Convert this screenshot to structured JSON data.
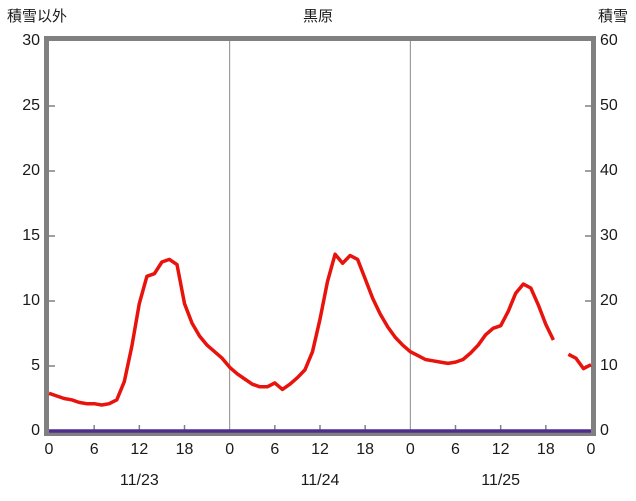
{
  "header": {
    "left_axis_title": "積雪以外",
    "chart_title": "黒原",
    "right_axis_title": "積雪"
  },
  "colors": {
    "frame": "#808080",
    "grid": "#8a8a8a",
    "tick": "#808080",
    "text": "#1a1a1a",
    "series_red": "#e8130c",
    "series_purple": "#4f2d90"
  },
  "chart_data": {
    "type": "line",
    "title": "黒原",
    "x_unit": "hour",
    "x_range": [
      0,
      72
    ],
    "x_tick_hours": [
      0,
      6,
      12,
      18,
      24,
      30,
      36,
      42,
      48,
      54,
      60,
      66,
      72
    ],
    "x_tick_labels": [
      "0",
      "6",
      "12",
      "18",
      "0",
      "6",
      "12",
      "18",
      "0",
      "6",
      "12",
      "18",
      "0"
    ],
    "day_boundary_hours": [
      24,
      48
    ],
    "day_labels": [
      {
        "label": "11/23",
        "center_hour": 12
      },
      {
        "label": "11/24",
        "center_hour": 36
      },
      {
        "label": "11/25",
        "center_hour": 60
      }
    ],
    "left_axis": {
      "title": "積雪以外",
      "min": 0,
      "max": 30,
      "ticks": [
        0,
        5,
        10,
        15,
        20,
        25,
        30
      ]
    },
    "right_axis": {
      "title": "積雪",
      "min": 0,
      "max": 60,
      "ticks": [
        0,
        10,
        20,
        30,
        40,
        50,
        60
      ]
    },
    "grid": "vertical-day-boundaries-only",
    "legend": "none",
    "series": [
      {
        "name": "積雪",
        "axis": "right",
        "color": "#4f2d90",
        "width": 3.5,
        "values": [
          0,
          0,
          0,
          0,
          0,
          0,
          0,
          0,
          0,
          0,
          0,
          0,
          0,
          0,
          0,
          0,
          0,
          0,
          0,
          0,
          0,
          0,
          0,
          0,
          0,
          0,
          0,
          0,
          0,
          0,
          0,
          0,
          0,
          0,
          0,
          0,
          0,
          0,
          0,
          0,
          0,
          0,
          0,
          0,
          0,
          0,
          0,
          0,
          0,
          0,
          0,
          0,
          0,
          0,
          0,
          0,
          0,
          0,
          0,
          0,
          0,
          0,
          0,
          0,
          0,
          0,
          0,
          0,
          0,
          0,
          0,
          0,
          0
        ]
      },
      {
        "name": "積雪以外",
        "axis": "left",
        "color": "#e8130c",
        "width": 3.5,
        "values": [
          2.9,
          2.7,
          2.5,
          2.4,
          2.2,
          2.1,
          2.1,
          2.0,
          2.1,
          2.4,
          3.8,
          6.5,
          9.8,
          11.9,
          12.1,
          13.0,
          13.2,
          12.8,
          9.8,
          8.3,
          7.3,
          6.6,
          6.1,
          5.6,
          4.9,
          4.4,
          4.0,
          3.6,
          3.4,
          3.4,
          3.7,
          3.2,
          3.6,
          4.1,
          4.7,
          6.1,
          8.6,
          11.5,
          13.6,
          12.9,
          13.5,
          13.2,
          11.7,
          10.2,
          9.0,
          8.0,
          7.2,
          6.6,
          6.1,
          5.8,
          5.5,
          5.4,
          5.3,
          5.2,
          5.3,
          5.5,
          6.0,
          6.6,
          7.4,
          7.9,
          8.1,
          9.2,
          10.6,
          11.3,
          11.0,
          9.7,
          8.2,
          7.0,
          null,
          5.9,
          5.6,
          4.8,
          5.1
        ]
      }
    ]
  }
}
